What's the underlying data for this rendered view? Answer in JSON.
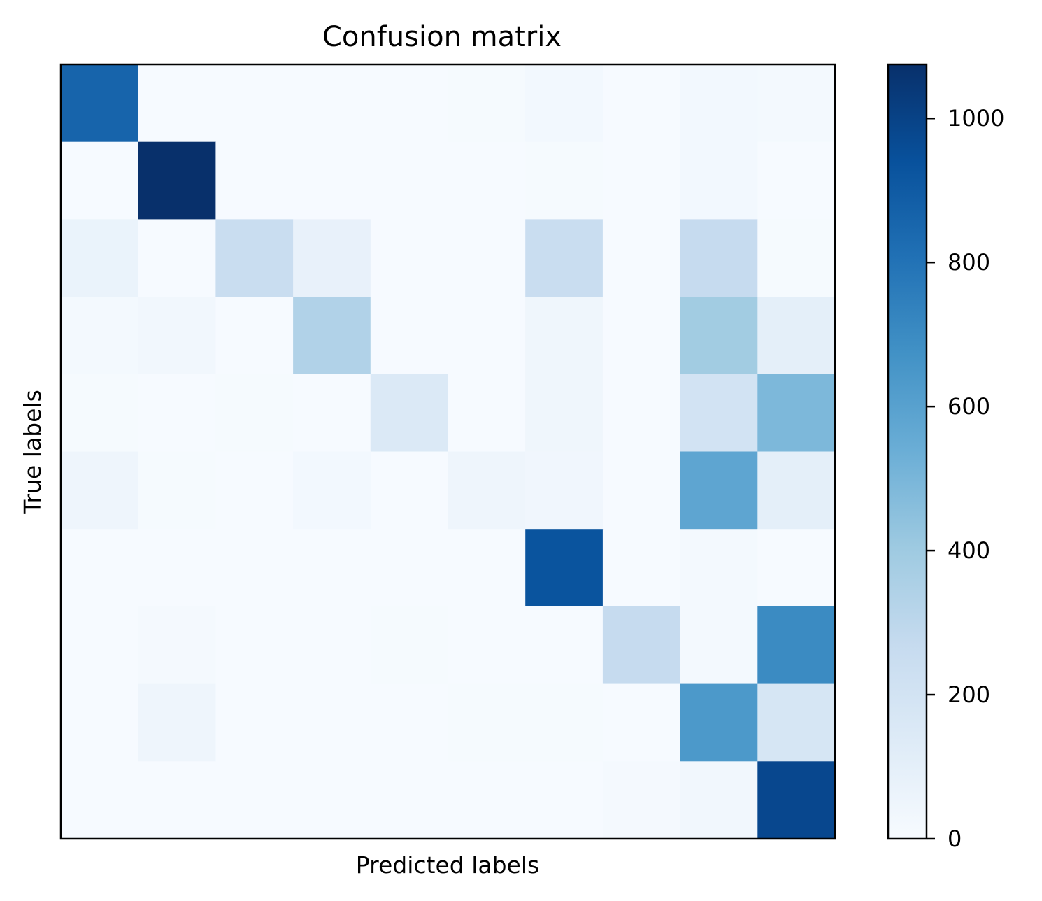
{
  "chart_data": {
    "type": "heatmap",
    "title": "Confusion matrix",
    "xlabel": "Predicted labels",
    "ylabel": "True labels",
    "colormap": "Blues",
    "color_range": [
      0,
      1075
    ],
    "colorbar": {
      "ticks": [
        0,
        200,
        400,
        600,
        800,
        1000
      ],
      "tick_labels": [
        "0",
        "200",
        "400",
        "600",
        "800",
        "1000"
      ]
    },
    "x_tick_labels": [],
    "y_tick_labels": [],
    "matrix": [
      [
        860,
        5,
        5,
        5,
        5,
        10,
        25,
        5,
        25,
        20
      ],
      [
        5,
        1075,
        5,
        5,
        5,
        5,
        10,
        5,
        25,
        5
      ],
      [
        70,
        5,
        250,
        80,
        5,
        5,
        250,
        5,
        270,
        10
      ],
      [
        20,
        30,
        5,
        340,
        5,
        5,
        45,
        5,
        390,
        100
      ],
      [
        10,
        5,
        10,
        5,
        150,
        5,
        45,
        5,
        200,
        490
      ],
      [
        50,
        10,
        5,
        25,
        5,
        50,
        40,
        5,
        580,
        100
      ],
      [
        5,
        5,
        5,
        5,
        5,
        5,
        930,
        5,
        20,
        5
      ],
      [
        5,
        15,
        5,
        5,
        10,
        5,
        5,
        270,
        20,
        700
      ],
      [
        5,
        50,
        5,
        5,
        5,
        10,
        10,
        5,
        640,
        180
      ],
      [
        5,
        5,
        5,
        5,
        5,
        5,
        5,
        15,
        30,
        980
      ]
    ]
  }
}
